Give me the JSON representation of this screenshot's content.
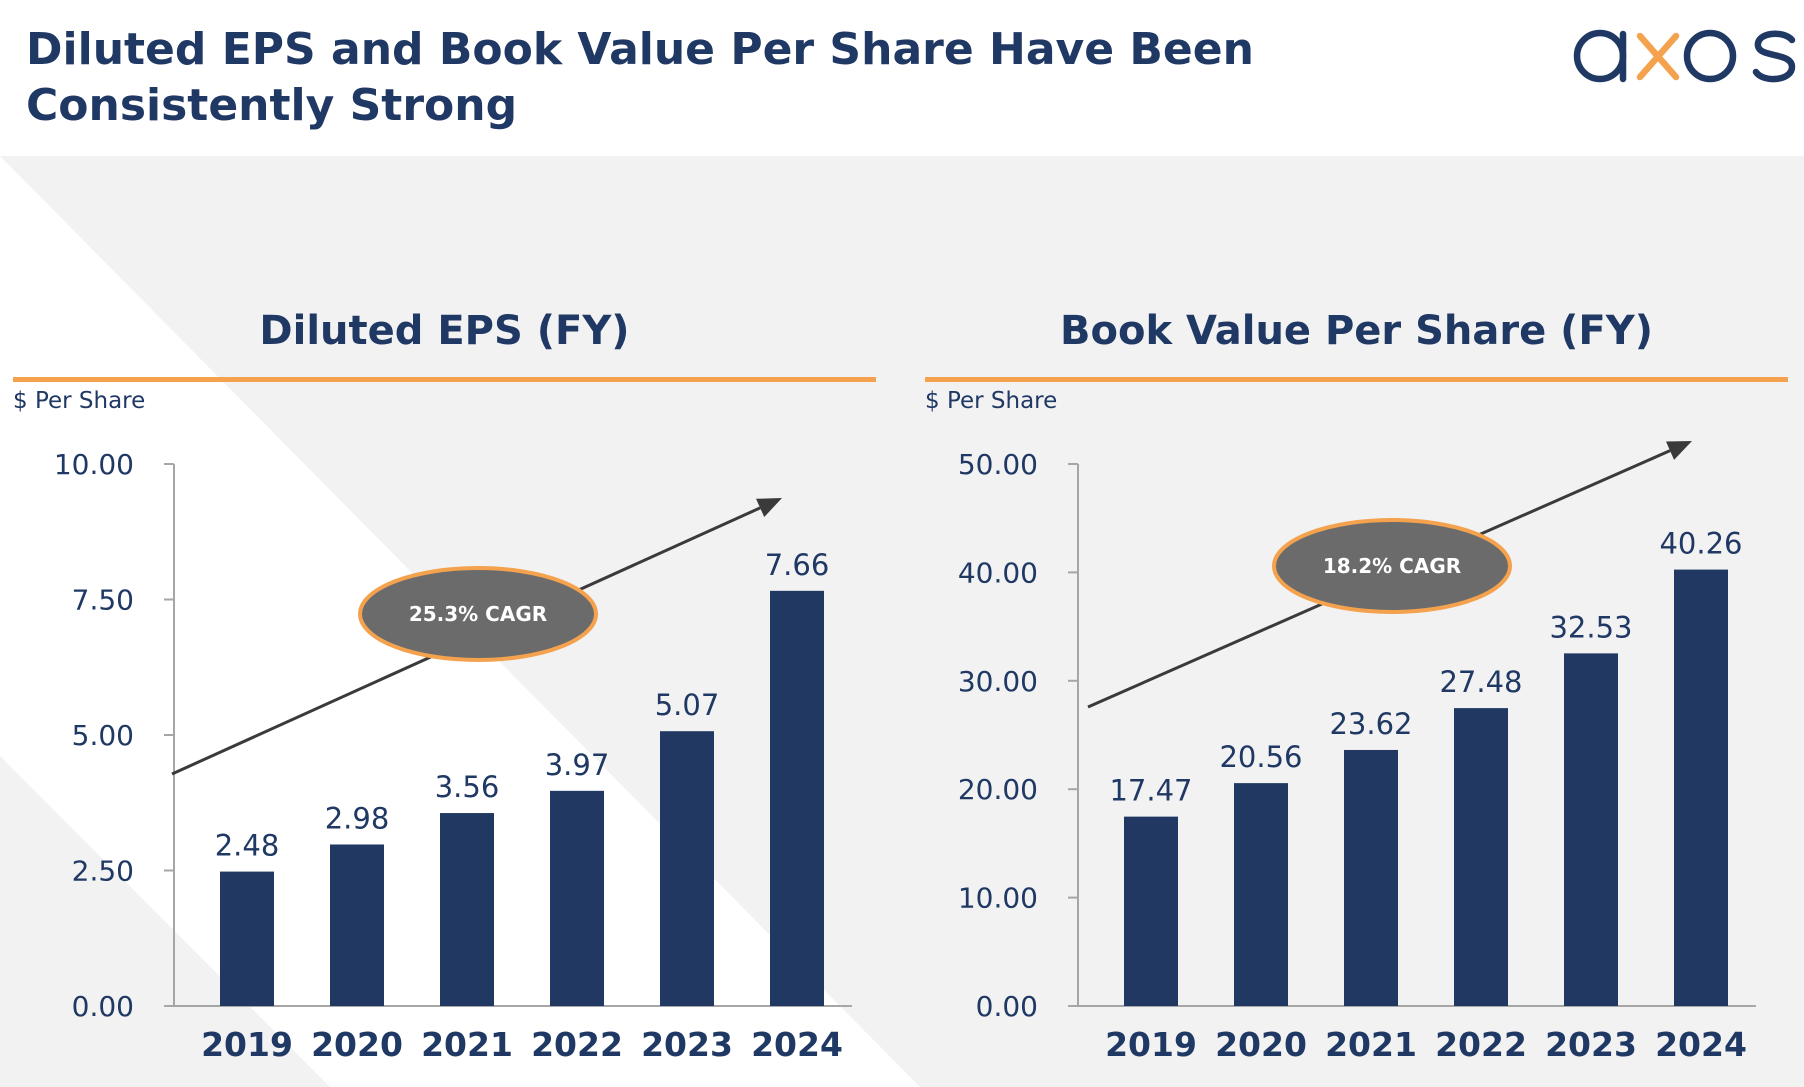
{
  "page": {
    "title": "Diluted EPS and Book Value Per Share Have Been Consistently Strong",
    "logo_text": "axos"
  },
  "colors": {
    "navy": "#1f3864",
    "orange": "#f4a24d",
    "bar": "#203862",
    "bubble": "#6b6b6b",
    "background_gray": "#f2f2f2"
  },
  "chart_data": [
    {
      "type": "bar",
      "title": "Diluted EPS (FY)",
      "ylabel": "$ Per Share",
      "categories": [
        "2019",
        "2020",
        "2021",
        "2022",
        "2023",
        "2024"
      ],
      "values": [
        2.48,
        2.98,
        3.56,
        3.97,
        5.07,
        7.66
      ],
      "value_labels": [
        "2.48",
        "2.98",
        "3.56",
        "3.97",
        "5.07",
        "7.66"
      ],
      "ylim": [
        0,
        10
      ],
      "yticks": [
        0,
        2.5,
        5,
        7.5,
        10
      ],
      "ytick_labels": [
        "0.00",
        "2.50",
        "5.00",
        "7.50",
        "10.00"
      ],
      "grid": false,
      "annotation": {
        "text": "25.3% CAGR"
      }
    },
    {
      "type": "bar",
      "title": "Book Value Per Share (FY)",
      "ylabel": "$ Per Share",
      "categories": [
        "2019",
        "2020",
        "2021",
        "2022",
        "2023",
        "2024"
      ],
      "values": [
        17.47,
        20.56,
        23.62,
        27.48,
        32.53,
        40.26
      ],
      "value_labels": [
        "17.47",
        "20.56",
        "23.62",
        "27.48",
        "32.53",
        "40.26"
      ],
      "ylim": [
        0,
        50
      ],
      "yticks": [
        0,
        10,
        20,
        30,
        40,
        50
      ],
      "ytick_labels": [
        "0.00",
        "10.00",
        "20.00",
        "30.00",
        "40.00",
        "50.00"
      ],
      "grid": false,
      "annotation": {
        "text": "18.2% CAGR"
      }
    }
  ]
}
